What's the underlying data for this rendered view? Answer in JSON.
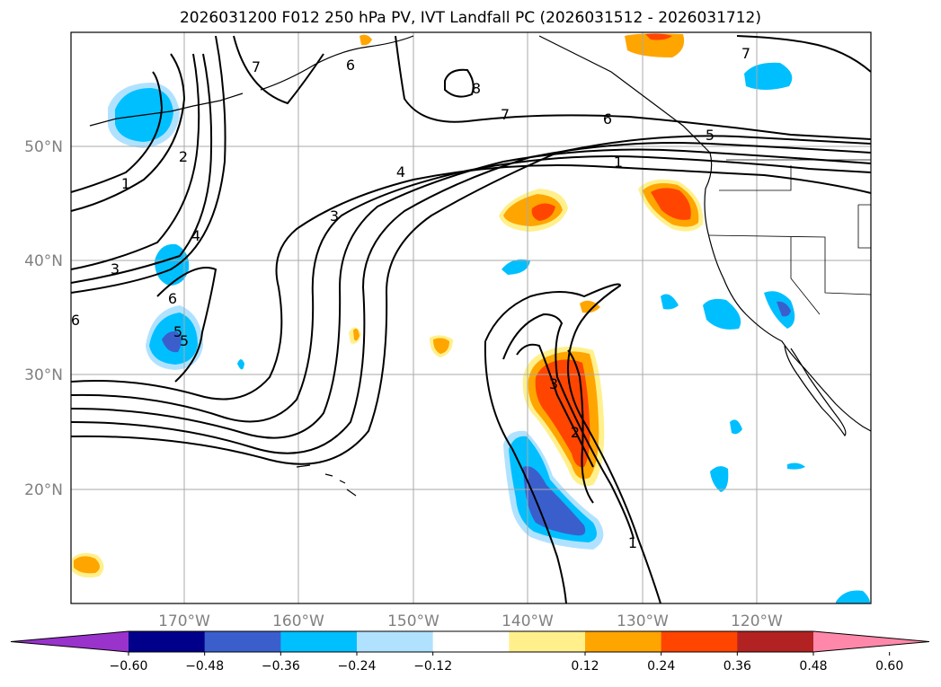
{
  "title": "2026031200 F012 250 hPa PV, IVT Landfall PC (2026031512 - 2026031712)",
  "lat_labels": [
    "50°N",
    "40°N",
    "30°N",
    "20°N"
  ],
  "lon_labels": [
    "170°W",
    "160°W",
    "150°W",
    "140°W",
    "130°W",
    "120°W"
  ],
  "colorbar": {
    "tick_labels": [
      "−0.60",
      "−0.48",
      "−0.36",
      "−0.24",
      "−0.12",
      "0.12",
      "0.24",
      "0.36",
      "0.48",
      "0.60"
    ],
    "colors": [
      "#9933cc",
      "#00008b",
      "#3a5fcd",
      "#00bfff",
      "#b0e2ff",
      "#ffffff",
      "#fff08c",
      "#ffa500",
      "#ff4500",
      "#b22222",
      "#ff88aa"
    ]
  },
  "contour_labels": [
    "7",
    "6",
    "7",
    "6",
    "5",
    "1",
    "4",
    "3",
    "2",
    "1",
    "3",
    "4",
    "6",
    "5",
    "3",
    "2",
    "1",
    "7",
    "8",
    "6",
    "5"
  ],
  "colors": {
    "land_line": "#000000",
    "grid": "#aaaaaa",
    "tick_text": "#808080"
  }
}
